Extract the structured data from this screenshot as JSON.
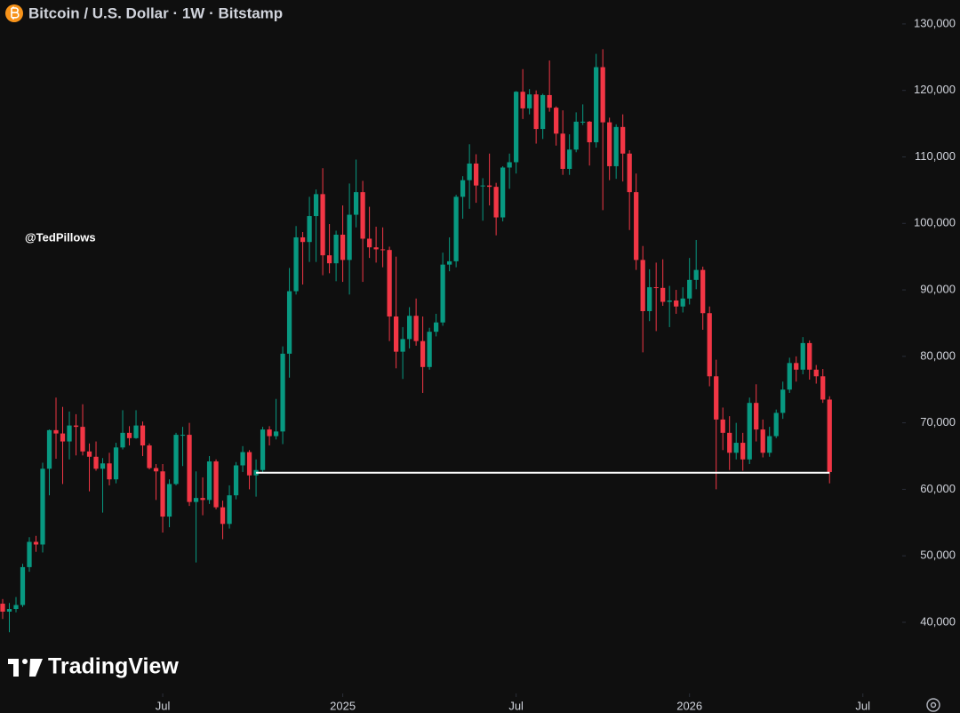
{
  "chart_data": {
    "type": "candlestick",
    "title": "Bitcoin / U.S. Dollar · 1W · Bitstamp",
    "watermark": "@TedPillows",
    "brand": "TradingView",
    "up_color": "#089981",
    "down_color": "#f23645",
    "open": [
      42800,
      41600,
      42000,
      42600,
      48300,
      52100,
      51700,
      63100,
      68900,
      68400,
      67200,
      69600,
      69400,
      65700,
      64900,
      63100,
      63900,
      61500,
      66300,
      68500,
      67700,
      69600,
      66600,
      63200,
      62700,
      55900,
      60800,
      68200,
      68200,
      58100,
      58700,
      58400,
      64200,
      57300,
      54800,
      59100,
      63600,
      65600,
      62100,
      62900,
      69000,
      68000,
      68700,
      80400,
      89800,
      97900,
      97200,
      101100,
      104400,
      95200,
      94000,
      98300,
      94500,
      101300,
      104700,
      97700,
      96400,
      96100,
      96000,
      86000,
      80700,
      82600,
      86100,
      82300,
      78400,
      83700,
      85100,
      93800,
      94300,
      104000,
      106500,
      109000,
      105700,
      105700,
      105500,
      100900,
      108400,
      109200,
      119800,
      117300,
      119400,
      114200,
      119300,
      117400,
      113500,
      108200,
      111100,
      115300,
      115300,
      112200,
      123500,
      115200,
      108600,
      114500,
      110500,
      104700,
      94500,
      86800,
      90400,
      90300,
      88200,
      88400,
      87500,
      88700,
      91500,
      93000,
      86500,
      77000,
      70500,
      68500,
      65500,
      67000,
      64500,
      73000,
      69000,
      65500,
      68000,
      71500,
      75000,
      79000,
      78000,
      82000,
      78000,
      77000,
      73500
    ],
    "high": [
      43500,
      42900,
      43800,
      48800,
      52800,
      53000,
      64000,
      69000,
      73800,
      72400,
      71700,
      71300,
      72800,
      66900,
      67200,
      64700,
      65500,
      67000,
      71900,
      69500,
      71900,
      70200,
      66900,
      63800,
      63800,
      61500,
      68500,
      69400,
      70000,
      62700,
      61800,
      65000,
      64500,
      58300,
      60600,
      64100,
      66500,
      65900,
      64500,
      69400,
      69500,
      73600,
      81500,
      93300,
      99600,
      98700,
      104000,
      105100,
      108300,
      99900,
      98900,
      102700,
      106000,
      109600,
      106400,
      102500,
      99500,
      99400,
      96500,
      95000,
      84400,
      87400,
      88700,
      86000,
      84300,
      86400,
      95600,
      97900,
      104300,
      107100,
      111900,
      110400,
      106800,
      110500,
      106100,
      108600,
      110500,
      119900,
      123200,
      120200,
      120000,
      119500,
      124500,
      117600,
      117000,
      113400,
      116700,
      117900,
      115400,
      125500,
      126200,
      115900,
      114900,
      116400,
      111000,
      107500,
      96600,
      93100,
      94100,
      94600,
      90600,
      90000,
      90400,
      94800,
      97500,
      93500,
      87500,
      79500,
      72300,
      71000,
      70000,
      68500,
      73800,
      75800,
      70500,
      69400,
      72000,
      76200,
      79800,
      80000,
      82900,
      82400,
      78700,
      78100,
      74000
    ],
    "low": [
      40500,
      38500,
      41500,
      42300,
      47600,
      50600,
      50500,
      59100,
      64600,
      60800,
      64500,
      65100,
      65100,
      59700,
      62800,
      56500,
      60600,
      60900,
      66000,
      66600,
      67600,
      65000,
      63000,
      58400,
      53500,
      54300,
      60600,
      63500,
      57500,
      49000,
      56100,
      57800,
      57000,
      52500,
      54100,
      58500,
      62600,
      60000,
      58900,
      62500,
      66600,
      67500,
      66800,
      76800,
      89300,
      90800,
      94200,
      94200,
      92200,
      92500,
      91300,
      91200,
      89300,
      99400,
      91200,
      94800,
      94100,
      93400,
      82300,
      78200,
      76600,
      81200,
      81600,
      74500,
      78000,
      83000,
      84600,
      92800,
      93400,
      100700,
      102200,
      103100,
      100400,
      102700,
      98200,
      100300,
      105200,
      107500,
      115700,
      116400,
      112000,
      112700,
      116800,
      111700,
      107300,
      107300,
      110700,
      114800,
      108700,
      111400,
      102000,
      106500,
      106700,
      106300,
      99000,
      93000,
      80600,
      85300,
      83800,
      87600,
      84400,
      86400,
      86600,
      87800,
      90100,
      84000,
      75500,
      60000,
      65900,
      62900,
      64500,
      62800,
      63800,
      67200,
      64800,
      64900,
      67700,
      70600,
      74500,
      76200,
      77300,
      76500,
      75900,
      73000,
      60900
    ],
    "close": [
      41600,
      42000,
      42600,
      48300,
      52100,
      51700,
      63100,
      68900,
      68400,
      67200,
      69600,
      69400,
      65700,
      64900,
      63100,
      63900,
      61500,
      66300,
      68500,
      67700,
      69600,
      66600,
      63200,
      62700,
      55900,
      60800,
      68200,
      68200,
      58100,
      58700,
      58400,
      64200,
      57300,
      54800,
      59100,
      63600,
      65600,
      62100,
      62900,
      69000,
      68000,
      68700,
      80400,
      89800,
      97900,
      97200,
      101100,
      104400,
      95200,
      94000,
      98300,
      94500,
      101300,
      104700,
      97700,
      96400,
      96100,
      96000,
      86000,
      80700,
      82600,
      86100,
      82300,
      78400,
      83700,
      85100,
      93800,
      94300,
      104000,
      106500,
      109000,
      105700,
      105700,
      105500,
      100900,
      108400,
      109200,
      119800,
      117300,
      119400,
      114200,
      119300,
      117400,
      113500,
      108200,
      111100,
      115300,
      115300,
      112200,
      123500,
      115200,
      108600,
      114500,
      110500,
      104700,
      94500,
      86800,
      90400,
      90300,
      88200,
      88400,
      87500,
      88700,
      91500,
      93000,
      86500,
      77000,
      70500,
      68500,
      65500,
      67000,
      64500,
      73000,
      69000,
      65500,
      68000,
      71500,
      75000,
      79000,
      78000,
      82000,
      78000,
      77000,
      73500,
      62600
    ],
    "xlim": [
      -0.4,
      134.9
    ],
    "xticks": [
      {
        "value": 24,
        "label": "Jul"
      },
      {
        "value": 51,
        "label": "2025"
      },
      {
        "value": 77,
        "label": "Jul"
      },
      {
        "value": 103,
        "label": "2026"
      },
      {
        "value": 129,
        "label": "Jul"
      }
    ],
    "ylim": [
      29300,
      133600
    ],
    "yticks": [
      {
        "value": 40000,
        "label": "40,000"
      },
      {
        "value": 50000,
        "label": "50,000"
      },
      {
        "value": 60000,
        "label": "60,000"
      },
      {
        "value": 70000,
        "label": "70,000"
      },
      {
        "value": 80000,
        "label": "80,000"
      },
      {
        "value": 90000,
        "label": "90,000"
      },
      {
        "value": 100000,
        "label": "100,000"
      },
      {
        "value": 110000,
        "label": "110,000"
      },
      {
        "value": 120000,
        "label": "120,000"
      },
      {
        "value": 130000,
        "label": "130,000"
      }
    ],
    "level_line": {
      "value": 62500,
      "span": [
        38,
        124
      ],
      "color": "#ffffff"
    }
  }
}
